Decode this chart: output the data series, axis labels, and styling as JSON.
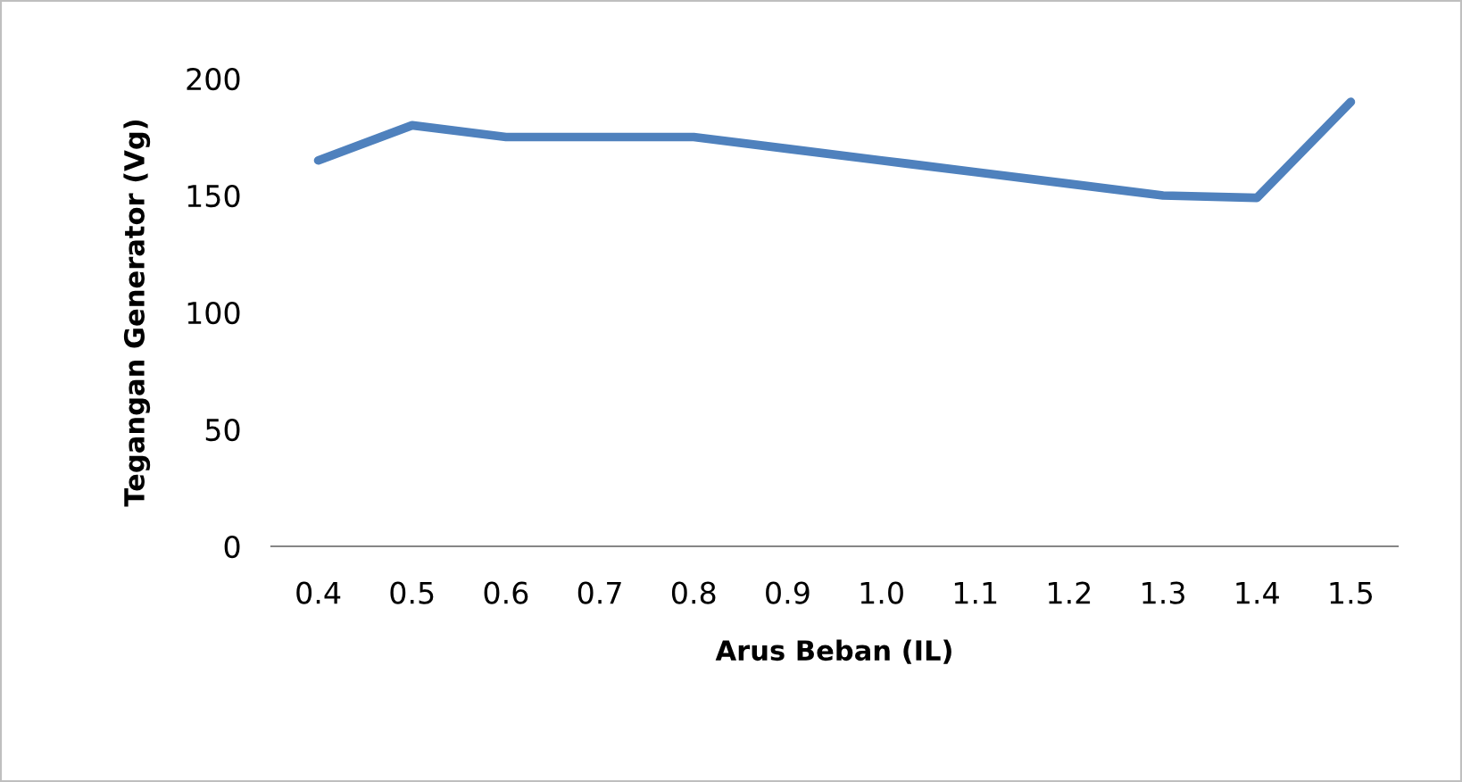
{
  "chart_data": {
    "type": "line",
    "xlabel": "Arus Beban (IL)",
    "ylabel": "Tegangan Generator (Vg)",
    "categories": [
      "0.4",
      "0.5",
      "0.6",
      "0.7",
      "0.8",
      "0.9",
      "1.0",
      "1.1",
      "1.2",
      "1.3",
      "1.4",
      "1.5"
    ],
    "series": [
      {
        "color": "#4f81bd",
        "values": [
          165,
          180,
          175,
          175,
          175,
          170,
          165,
          160,
          155,
          150,
          149,
          190
        ]
      }
    ],
    "ylim": [
      0,
      200
    ],
    "yticks": [
      0,
      50,
      100,
      150,
      200
    ],
    "grid": false,
    "legend": false,
    "marker": "none",
    "line_style": "solid"
  }
}
